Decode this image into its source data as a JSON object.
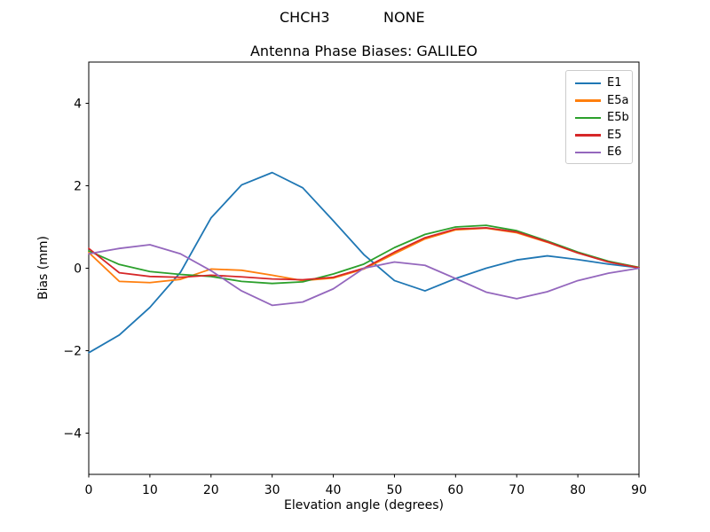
{
  "header": {
    "station": "CHCH3",
    "mode": "NONE"
  },
  "chart_data": {
    "type": "line",
    "suptitle": "CHCH3          NONE",
    "title": "Antenna Phase Biases: GALILEO",
    "xlabel": "Elevation angle (degrees)",
    "ylabel": "Bias (mm)",
    "xlim": [
      0,
      90
    ],
    "ylim": [
      -5,
      5
    ],
    "xticks": [
      0,
      10,
      20,
      30,
      40,
      50,
      60,
      70,
      80,
      90
    ],
    "yticks": [
      -4,
      -2,
      0,
      2,
      4
    ],
    "grid": false,
    "legend_position": "upper right",
    "x": [
      0,
      5,
      10,
      15,
      20,
      25,
      30,
      35,
      40,
      45,
      50,
      55,
      60,
      65,
      70,
      75,
      80,
      85,
      90
    ],
    "series": [
      {
        "name": "E1",
        "color": "#1f77b4",
        "values": [
          -2.05,
          -1.62,
          -0.95,
          -0.1,
          1.22,
          2.02,
          2.32,
          1.95,
          1.15,
          0.33,
          -0.3,
          -0.55,
          -0.25,
          0.0,
          0.2,
          0.3,
          0.21,
          0.1,
          0.01
        ]
      },
      {
        "name": "E5a",
        "color": "#ff7f0e",
        "values": [
          0.38,
          -0.32,
          -0.35,
          -0.27,
          -0.02,
          -0.05,
          -0.17,
          -0.3,
          -0.24,
          -0.02,
          0.35,
          0.71,
          0.93,
          0.97,
          0.86,
          0.63,
          0.37,
          0.16,
          0.02
        ]
      },
      {
        "name": "E5b",
        "color": "#2ca02c",
        "values": [
          0.42,
          0.09,
          -0.08,
          -0.15,
          -0.2,
          -0.32,
          -0.37,
          -0.33,
          -0.14,
          0.1,
          0.5,
          0.82,
          1.0,
          1.04,
          0.91,
          0.66,
          0.39,
          0.17,
          0.02
        ]
      },
      {
        "name": "E5",
        "color": "#d62728",
        "values": [
          0.48,
          -0.11,
          -0.2,
          -0.22,
          -0.17,
          -0.21,
          -0.26,
          -0.28,
          -0.22,
          0.0,
          0.39,
          0.74,
          0.95,
          0.98,
          0.88,
          0.64,
          0.37,
          0.15,
          0.01
        ]
      },
      {
        "name": "E6",
        "color": "#9467bd",
        "values": [
          0.35,
          0.48,
          0.57,
          0.35,
          -0.06,
          -0.55,
          -0.9,
          -0.82,
          -0.5,
          0.0,
          0.15,
          0.07,
          -0.25,
          -0.58,
          -0.74,
          -0.57,
          -0.3,
          -0.12,
          0.0
        ]
      }
    ]
  }
}
